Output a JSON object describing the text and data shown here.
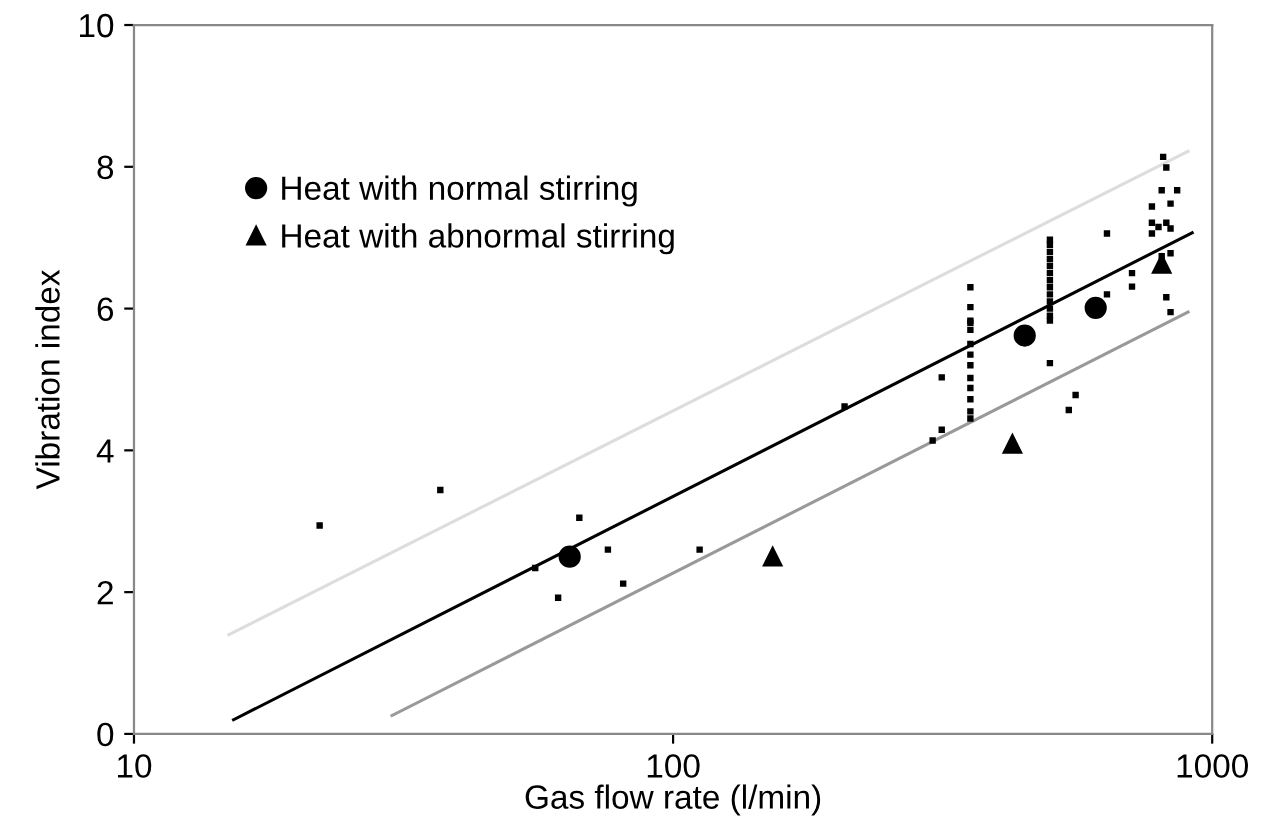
{
  "chart_data": {
    "type": "scatter",
    "xlabel": "Gas flow rate (l/min)",
    "ylabel": "Vibration index",
    "log": "x",
    "xlim": [
      10,
      1000
    ],
    "xticks": [
      10,
      100,
      1000
    ],
    "ylim": [
      0,
      10
    ],
    "yticks": [
      0,
      2,
      4,
      6,
      8,
      10
    ],
    "grid": false,
    "legend": "top left",
    "series": [
      {
        "type": "line",
        "color": "#000000",
        "marker": "none",
        "x": [
          15.3,
          918
        ],
        "values": [
          0.2,
          7.07
        ]
      },
      {
        "type": "line",
        "color": "#dddddd",
        "marker": "none",
        "x": [
          15.0,
          902
        ],
        "values": [
          1.4,
          8.22
        ]
      },
      {
        "type": "line",
        "color": "#999999",
        "marker": "none",
        "x": [
          30.1,
          902
        ],
        "values": [
          0.26,
          5.95
        ]
      },
      {
        "color": "#000000",
        "marker": "square",
        "x": [
          22.1,
          37.0,
          55.5,
          61.2,
          67.0,
          75.7,
          80.8,
          112,
          208,
          303,
          315,
          315,
          356,
          356,
          356,
          356,
          356,
          356,
          356,
          356,
          356,
          356,
          356,
          356,
          356,
          500,
          500,
          500,
          500,
          500,
          500,
          500,
          500,
          500,
          500,
          500,
          500,
          500,
          500,
          542,
          558,
          638,
          638,
          710,
          710,
          811,
          822,
          861,
          806,
          773,
          837,
          773,
          795,
          822,
          837,
          773,
          806,
          837,
          822,
          837
        ],
        "values": [
          2.94,
          3.44,
          2.34,
          1.92,
          3.05,
          2.6,
          2.12,
          2.6,
          4.62,
          4.14,
          4.29,
          5.03,
          6.3,
          6.02,
          5.83,
          5.8,
          5.7,
          5.5,
          5.35,
          5.2,
          5.02,
          4.88,
          4.72,
          4.55,
          4.45,
          6.97,
          6.9,
          6.8,
          6.7,
          6.6,
          6.5,
          6.4,
          6.3,
          6.2,
          6.1,
          6.0,
          5.9,
          5.83,
          5.23,
          4.57,
          4.78,
          7.06,
          6.2,
          6.5,
          6.31,
          8.14,
          7.99,
          7.67,
          7.67,
          7.44,
          7.48,
          7.21,
          7.15,
          7.21,
          7.13,
          7.06,
          6.74,
          6.78,
          6.16,
          5.95
        ]
      },
      {
        "name": "Heat with normal stirring",
        "color": "#000000",
        "marker": "circle",
        "x": [
          64.3,
          449,
          608
        ],
        "values": [
          2.5,
          5.62,
          6.01
        ]
      },
      {
        "name": "Heat with abnormal stirring",
        "color": "#000000",
        "marker": "triangle",
        "x": [
          153,
          426,
          806
        ],
        "values": [
          2.5,
          4.09,
          6.63
        ]
      }
    ]
  }
}
